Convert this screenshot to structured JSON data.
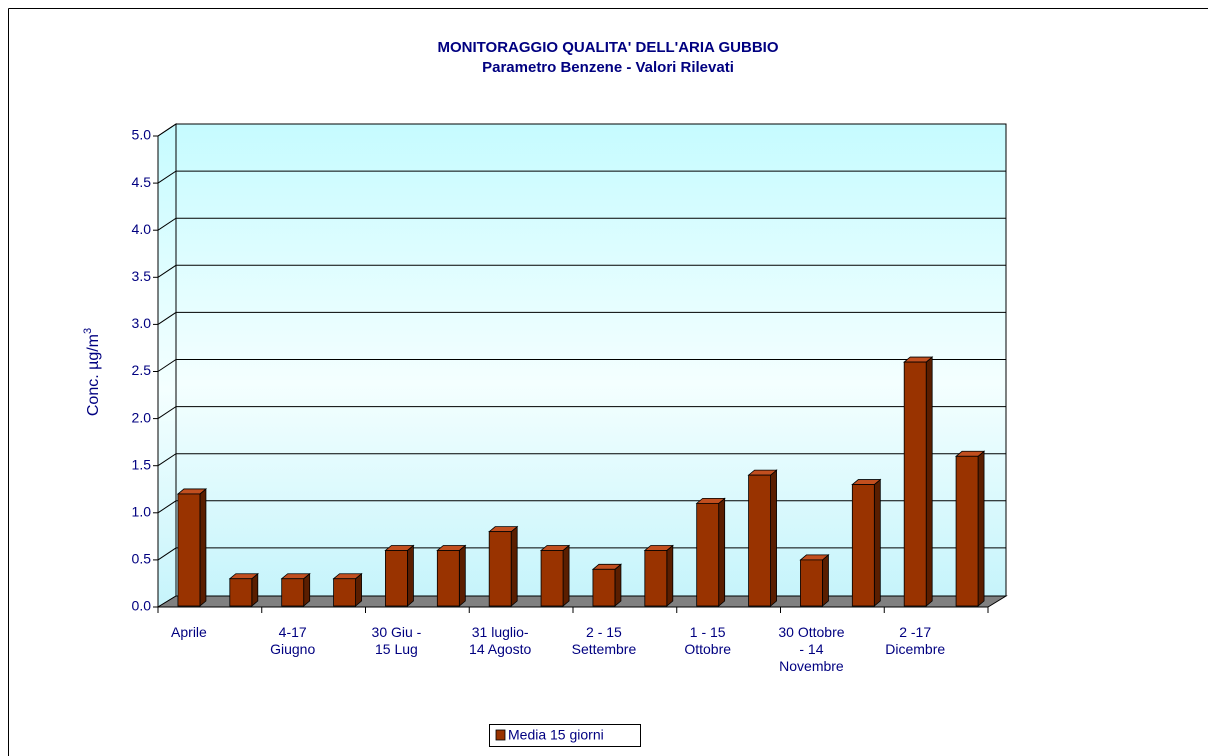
{
  "chart_data": {
    "type": "bar",
    "title": "MONITORAGGIO QUALITA' DELL'ARIA GUBBIO",
    "subtitle": "Parametro Benzene - Valori Rilevati",
    "y_label": "Conc.  µg/m",
    "y_label_sup": "3",
    "categories": [
      "Aprile",
      null,
      "4-17\nGiugno",
      null,
      "30 Giu -\n15 Lug",
      null,
      "31 luglio-\n14 Agosto",
      null,
      "2 - 15\nSettembre",
      null,
      "1 - 15\nOttobre",
      null,
      "30 Ottobre\n- 14\nNovembre",
      null,
      "2 -17\nDicembre",
      null
    ],
    "series": [
      {
        "name": "Media 15 giorni",
        "color": "#993300",
        "values": [
          1.2,
          0.3,
          0.3,
          0.3,
          0.6,
          0.6,
          0.8,
          0.6,
          0.4,
          0.6,
          1.1,
          1.4,
          0.5,
          1.3,
          2.6,
          1.6
        ]
      }
    ],
    "ylim": [
      0,
      5
    ],
    "yticks": [
      {
        "value": 0,
        "label": "0.0"
      },
      {
        "value": 0.5,
        "label": "0.5"
      },
      {
        "value": 1,
        "label": "1.0"
      },
      {
        "value": 1.5,
        "label": "1.5"
      },
      {
        "value": 2,
        "label": "2.0"
      },
      {
        "value": 2.5,
        "label": "2.5"
      },
      {
        "value": 3,
        "label": "3.0"
      },
      {
        "value": 3.5,
        "label": "3.5"
      },
      {
        "value": 4,
        "label": "4.0"
      },
      {
        "value": 4.5,
        "label": "4.5"
      },
      {
        "value": 5,
        "label": "5.0"
      }
    ],
    "grid": true
  }
}
